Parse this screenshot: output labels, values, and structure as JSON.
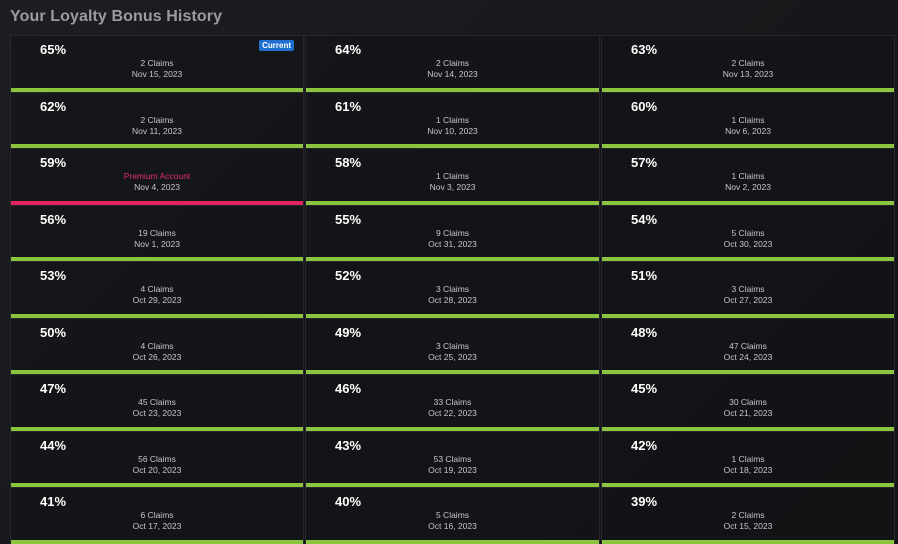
{
  "title": "Your Loyalty Bonus History",
  "colors": {
    "bar_default": "#8bc53f",
    "bar_premium": "#e0245e",
    "badge_current": "#1f6fd1"
  },
  "cells": [
    {
      "percent": "65%",
      "claims": "2 Claims",
      "date": "Nov 15, 2023",
      "badge": "Current",
      "premium": false
    },
    {
      "percent": "64%",
      "claims": "2 Claims",
      "date": "Nov 14, 2023",
      "premium": false
    },
    {
      "percent": "63%",
      "claims": "2 Claims",
      "date": "Nov 13, 2023",
      "premium": false
    },
    {
      "percent": "62%",
      "claims": "2 Claims",
      "date": "Nov 11, 2023",
      "premium": false
    },
    {
      "percent": "61%",
      "claims": "1 Claims",
      "date": "Nov 10, 2023",
      "premium": false
    },
    {
      "percent": "60%",
      "claims": "1 Claims",
      "date": "Nov 6, 2023",
      "premium": false
    },
    {
      "percent": "59%",
      "claims": "Premium Account",
      "date": "Nov 4, 2023",
      "premium": true
    },
    {
      "percent": "58%",
      "claims": "1 Claims",
      "date": "Nov 3, 2023",
      "premium": false
    },
    {
      "percent": "57%",
      "claims": "1 Claims",
      "date": "Nov 2, 2023",
      "premium": false
    },
    {
      "percent": "56%",
      "claims": "19 Claims",
      "date": "Nov 1, 2023",
      "premium": false
    },
    {
      "percent": "55%",
      "claims": "9 Claims",
      "date": "Oct 31, 2023",
      "premium": false
    },
    {
      "percent": "54%",
      "claims": "5 Claims",
      "date": "Oct 30, 2023",
      "premium": false
    },
    {
      "percent": "53%",
      "claims": "4 Claims",
      "date": "Oct 29, 2023",
      "premium": false
    },
    {
      "percent": "52%",
      "claims": "3 Claims",
      "date": "Oct 28, 2023",
      "premium": false
    },
    {
      "percent": "51%",
      "claims": "3 Claims",
      "date": "Oct 27, 2023",
      "premium": false
    },
    {
      "percent": "50%",
      "claims": "4 Claims",
      "date": "Oct 26, 2023",
      "premium": false
    },
    {
      "percent": "49%",
      "claims": "3 Claims",
      "date": "Oct 25, 2023",
      "premium": false
    },
    {
      "percent": "48%",
      "claims": "47 Claims",
      "date": "Oct 24, 2023",
      "premium": false
    },
    {
      "percent": "47%",
      "claims": "45 Claims",
      "date": "Oct 23, 2023",
      "premium": false
    },
    {
      "percent": "46%",
      "claims": "33 Claims",
      "date": "Oct 22, 2023",
      "premium": false
    },
    {
      "percent": "45%",
      "claims": "30 Claims",
      "date": "Oct 21, 2023",
      "premium": false
    },
    {
      "percent": "44%",
      "claims": "56 Claims",
      "date": "Oct 20, 2023",
      "premium": false
    },
    {
      "percent": "43%",
      "claims": "53 Claims",
      "date": "Oct 19, 2023",
      "premium": false
    },
    {
      "percent": "42%",
      "claims": "1 Claims",
      "date": "Oct 18, 2023",
      "premium": false
    },
    {
      "percent": "41%",
      "claims": "6 Claims",
      "date": "Oct 17, 2023",
      "premium": false
    },
    {
      "percent": "40%",
      "claims": "5 Claims",
      "date": "Oct 16, 2023",
      "premium": false
    },
    {
      "percent": "39%",
      "claims": "2 Claims",
      "date": "Oct 15, 2023",
      "premium": false
    }
  ]
}
